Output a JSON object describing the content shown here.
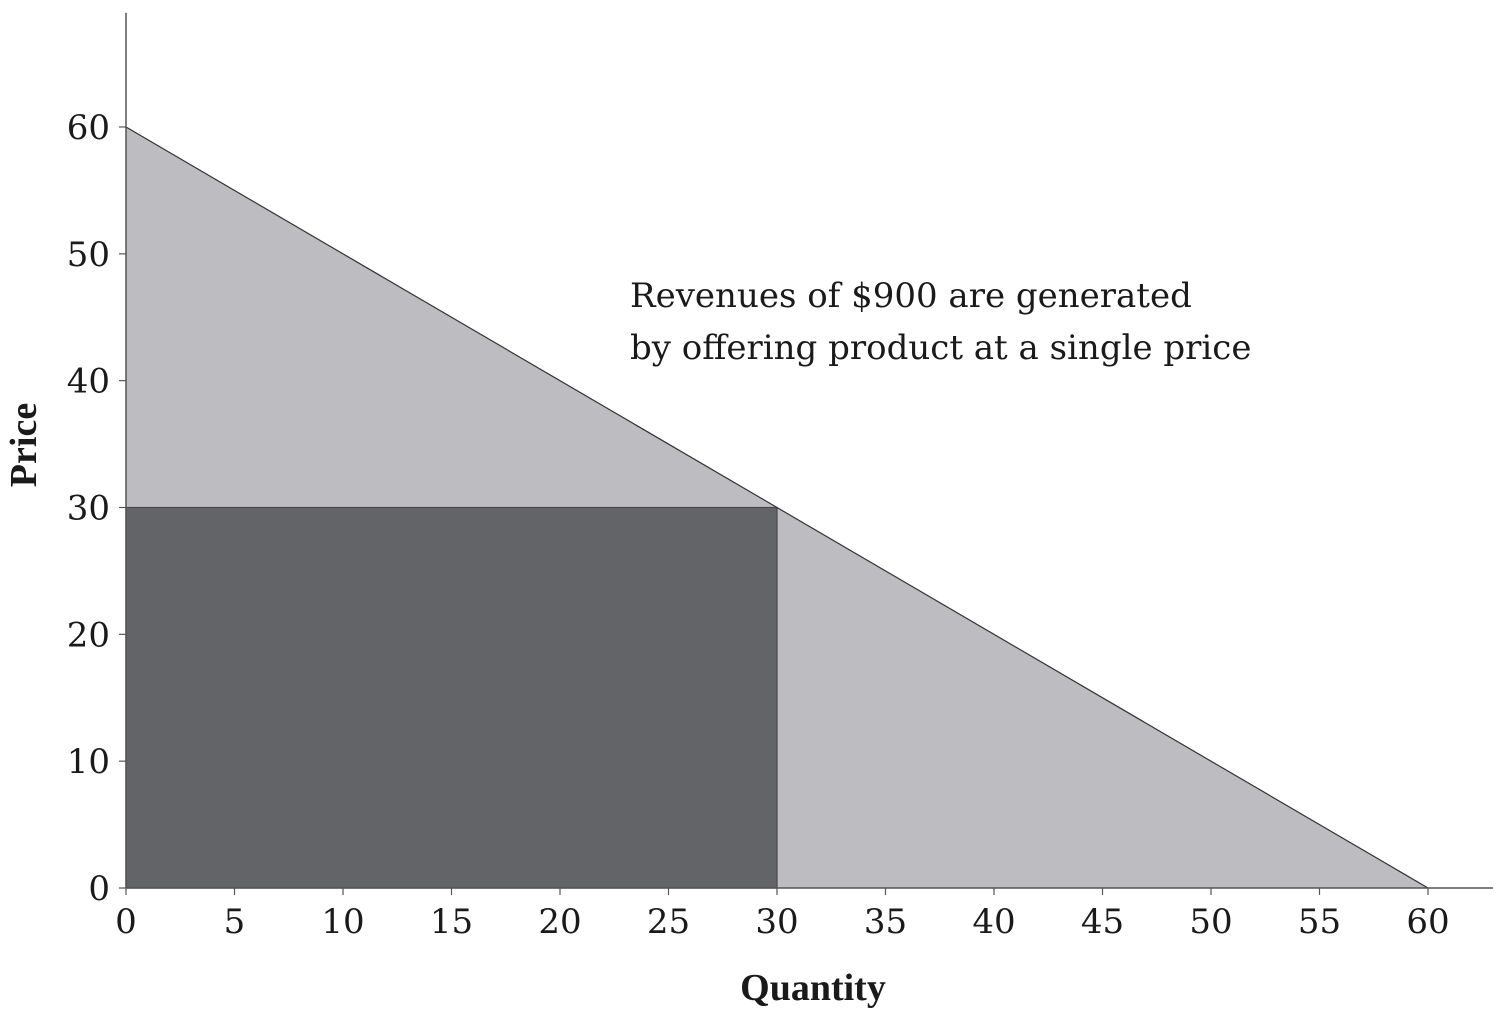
{
  "chart_data": {
    "type": "area",
    "xlabel": "Quantity",
    "ylabel": "Price",
    "xlim": [
      0,
      63
    ],
    "ylim": [
      0,
      69
    ],
    "x_ticks": [
      0,
      5,
      10,
      15,
      20,
      25,
      30,
      35,
      40,
      45,
      50,
      55,
      60
    ],
    "y_ticks": [
      0,
      10,
      20,
      30,
      40,
      50,
      60
    ],
    "demand_curve": {
      "x": [
        0,
        60
      ],
      "y": [
        60,
        0
      ]
    },
    "revenue_rectangle": {
      "quantity": 30,
      "price": 30
    },
    "annotation": {
      "lines": [
        "Revenues of $900 are generated",
        "by offering product at a single price"
      ]
    },
    "colors": {
      "demand_area": "#bdbcc1",
      "revenue_area": "#636468",
      "axis": "#555555",
      "line": "#333333"
    },
    "grid": false,
    "legend": "none"
  }
}
